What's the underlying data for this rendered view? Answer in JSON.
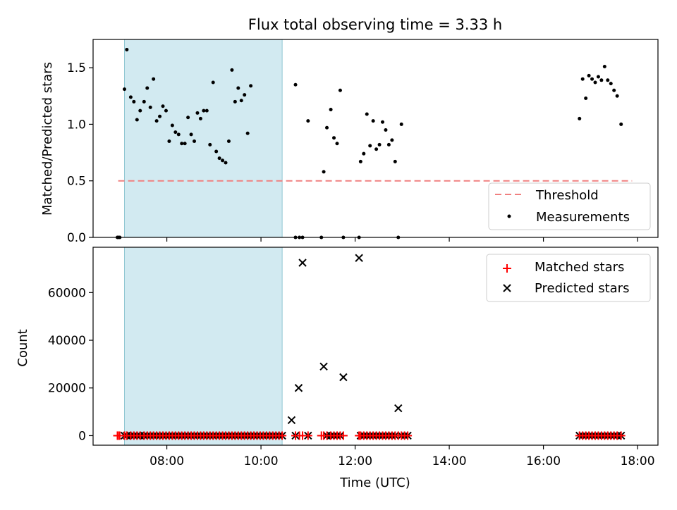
{
  "title": "Flux total observing time = 3.33 h",
  "xlabel": "Time (UTC)",
  "colors": {
    "observing_band": "#add8e6",
    "threshold": "#f08080",
    "measurements": "#000000",
    "matched": "#ff0000",
    "predicted": "#000000"
  },
  "chart_data": [
    {
      "type": "scatter",
      "ylabel": "Matched/Predicted stars",
      "xlim": [
        "06:26",
        "18:26"
      ],
      "ylim": [
        0,
        1.75
      ],
      "yticks": [
        0.0,
        0.5,
        1.0,
        1.5
      ],
      "ytick_labels": [
        "0.0",
        "0.5",
        "1.0",
        "1.5"
      ],
      "shaded_band": {
        "x_start": "07:06",
        "x_end": "10:27"
      },
      "threshold": {
        "name": "Threshold",
        "y": 0.5,
        "x_start": "06:58",
        "x_end": "17:53"
      },
      "legend": {
        "position": "lower-right",
        "entries": [
          "Threshold",
          "Measurements"
        ]
      },
      "series": [
        {
          "name": "Measurements",
          "points": [
            [
              "06:57",
              0
            ],
            [
              "06:58",
              0
            ],
            [
              "07:00",
              0
            ],
            [
              "07:06",
              1.31
            ],
            [
              "07:09",
              1.66
            ],
            [
              "07:14",
              1.24
            ],
            [
              "07:18",
              1.2
            ],
            [
              "07:22",
              1.04
            ],
            [
              "07:26",
              1.12
            ],
            [
              "07:31",
              1.2
            ],
            [
              "07:35",
              1.32
            ],
            [
              "07:39",
              1.15
            ],
            [
              "07:43",
              1.4
            ],
            [
              "07:47",
              1.03
            ],
            [
              "07:51",
              1.07
            ],
            [
              "07:55",
              1.16
            ],
            [
              "07:59",
              1.12
            ],
            [
              "08:03",
              0.85
            ],
            [
              "08:07",
              0.99
            ],
            [
              "08:11",
              0.93
            ],
            [
              "08:15",
              0.91
            ],
            [
              "08:19",
              0.83
            ],
            [
              "08:23",
              0.83
            ],
            [
              "08:27",
              1.06
            ],
            [
              "08:31",
              0.91
            ],
            [
              "08:35",
              0.85
            ],
            [
              "08:39",
              1.1
            ],
            [
              "08:43",
              1.05
            ],
            [
              "08:47",
              1.12
            ],
            [
              "08:51",
              1.12
            ],
            [
              "08:55",
              0.82
            ],
            [
              "08:59",
              1.37
            ],
            [
              "09:03",
              0.76
            ],
            [
              "09:07",
              0.7
            ],
            [
              "09:11",
              0.68
            ],
            [
              "09:15",
              0.66
            ],
            [
              "09:19",
              0.85
            ],
            [
              "09:23",
              1.48
            ],
            [
              "09:27",
              1.2
            ],
            [
              "09:31",
              1.32
            ],
            [
              "09:35",
              1.21
            ],
            [
              "09:39",
              1.26
            ],
            [
              "09:43",
              0.92
            ],
            [
              "09:47",
              1.34
            ],
            [
              "10:44",
              1.35
            ],
            [
              "10:44",
              0
            ],
            [
              "10:49",
              0
            ],
            [
              "10:53",
              0
            ],
            [
              "11:00",
              1.03
            ],
            [
              "11:17",
              0
            ],
            [
              "11:20",
              0.58
            ],
            [
              "11:24",
              0.97
            ],
            [
              "11:29",
              1.13
            ],
            [
              "11:33",
              0.88
            ],
            [
              "11:37",
              0.83
            ],
            [
              "11:41",
              1.3
            ],
            [
              "11:45",
              0
            ],
            [
              "12:05",
              0
            ],
            [
              "12:07",
              0.67
            ],
            [
              "12:11",
              0.74
            ],
            [
              "12:15",
              1.09
            ],
            [
              "12:19",
              0.81
            ],
            [
              "12:23",
              1.03
            ],
            [
              "12:27",
              0.78
            ],
            [
              "12:31",
              0.82
            ],
            [
              "12:35",
              1.02
            ],
            [
              "12:39",
              0.95
            ],
            [
              "12:43",
              0.82
            ],
            [
              "12:47",
              0.86
            ],
            [
              "12:51",
              0.67
            ],
            [
              "12:55",
              0
            ],
            [
              "12:59",
              1.0
            ],
            [
              "16:46",
              1.05
            ],
            [
              "16:50",
              1.4
            ],
            [
              "16:54",
              1.23
            ],
            [
              "16:58",
              1.43
            ],
            [
              "17:02",
              1.4
            ],
            [
              "17:06",
              1.37
            ],
            [
              "17:10",
              1.42
            ],
            [
              "17:14",
              1.39
            ],
            [
              "17:18",
              1.51
            ],
            [
              "17:22",
              1.39
            ],
            [
              "17:26",
              1.36
            ],
            [
              "17:30",
              1.3
            ],
            [
              "17:34",
              1.25
            ],
            [
              "17:39",
              1.0
            ]
          ]
        }
      ]
    },
    {
      "type": "scatter",
      "ylabel": "Count",
      "xlim": [
        "06:26",
        "18:26"
      ],
      "ylim": [
        -4000,
        79000
      ],
      "yticks": [
        0,
        20000,
        40000,
        60000
      ],
      "ytick_labels": [
        "0",
        "20000",
        "40000",
        "60000"
      ],
      "xticks": [
        "08:00",
        "10:00",
        "12:00",
        "14:00",
        "16:00",
        "18:00"
      ],
      "shaded_band": {
        "x_start": "07:06",
        "x_end": "10:27"
      },
      "legend": {
        "position": "upper-right",
        "entries": [
          "Matched stars",
          "Predicted stars"
        ]
      },
      "series": [
        {
          "name": "Matched stars",
          "points_note_free": true,
          "x": [
            "06:57",
            "06:58",
            "07:00",
            "07:06",
            "07:09",
            "07:14",
            "07:18",
            "07:22",
            "07:26",
            "07:31",
            "07:35",
            "07:39",
            "07:43",
            "07:47",
            "07:51",
            "07:55",
            "07:59",
            "08:03",
            "08:07",
            "08:11",
            "08:15",
            "08:19",
            "08:23",
            "08:27",
            "08:31",
            "08:35",
            "08:39",
            "08:43",
            "08:47",
            "08:51",
            "08:55",
            "08:59",
            "09:03",
            "09:07",
            "09:11",
            "09:15",
            "09:19",
            "09:23",
            "09:27",
            "09:31",
            "09:35",
            "09:39",
            "09:43",
            "09:47",
            "09:51",
            "09:55",
            "09:59",
            "10:03",
            "10:07",
            "10:11",
            "10:15",
            "10:19",
            "10:23",
            "10:27",
            "10:44",
            "10:49",
            "10:53",
            "11:00",
            "11:17",
            "11:20",
            "11:24",
            "11:29",
            "11:33",
            "11:37",
            "11:41",
            "11:45",
            "12:05",
            "12:07",
            "12:11",
            "12:15",
            "12:19",
            "12:23",
            "12:27",
            "12:31",
            "12:35",
            "12:39",
            "12:43",
            "12:47",
            "12:51",
            "12:55",
            "12:59",
            "13:03",
            "13:07",
            "16:46",
            "16:50",
            "16:54",
            "16:58",
            "17:02",
            "17:06",
            "17:10",
            "17:14",
            "17:18",
            "17:22",
            "17:26",
            "17:30",
            "17:34",
            "17:39"
          ],
          "y": 0
        },
        {
          "name": "Predicted stars",
          "points": [
            [
              "07:06",
              0
            ],
            [
              "07:09",
              0
            ],
            [
              "07:14",
              0
            ],
            [
              "07:18",
              0
            ],
            [
              "07:22",
              0
            ],
            [
              "07:26",
              0
            ],
            [
              "07:31",
              0
            ],
            [
              "07:35",
              0
            ],
            [
              "07:39",
              0
            ],
            [
              "07:43",
              0
            ],
            [
              "07:47",
              0
            ],
            [
              "07:51",
              0
            ],
            [
              "07:55",
              0
            ],
            [
              "07:59",
              0
            ],
            [
              "08:03",
              0
            ],
            [
              "08:07",
              0
            ],
            [
              "08:11",
              0
            ],
            [
              "08:15",
              0
            ],
            [
              "08:19",
              0
            ],
            [
              "08:23",
              0
            ],
            [
              "08:27",
              0
            ],
            [
              "08:31",
              0
            ],
            [
              "08:35",
              0
            ],
            [
              "08:39",
              0
            ],
            [
              "08:43",
              0
            ],
            [
              "08:47",
              0
            ],
            [
              "08:51",
              0
            ],
            [
              "08:55",
              0
            ],
            [
              "08:59",
              0
            ],
            [
              "09:03",
              0
            ],
            [
              "09:07",
              0
            ],
            [
              "09:11",
              0
            ],
            [
              "09:15",
              0
            ],
            [
              "09:19",
              0
            ],
            [
              "09:23",
              0
            ],
            [
              "09:27",
              0
            ],
            [
              "09:31",
              0
            ],
            [
              "09:35",
              0
            ],
            [
              "09:39",
              0
            ],
            [
              "09:43",
              0
            ],
            [
              "09:47",
              0
            ],
            [
              "09:51",
              0
            ],
            [
              "09:55",
              0
            ],
            [
              "09:59",
              0
            ],
            [
              "10:03",
              0
            ],
            [
              "10:07",
              0
            ],
            [
              "10:11",
              0
            ],
            [
              "10:15",
              0
            ],
            [
              "10:19",
              0
            ],
            [
              "10:23",
              0
            ],
            [
              "10:27",
              0
            ],
            [
              "10:39",
              6500
            ],
            [
              "10:44",
              0
            ],
            [
              "10:48",
              20000
            ],
            [
              "10:53",
              72500
            ],
            [
              "11:00",
              0
            ],
            [
              "11:20",
              29000
            ],
            [
              "11:24",
              0
            ],
            [
              "11:29",
              0
            ],
            [
              "11:33",
              0
            ],
            [
              "11:37",
              0
            ],
            [
              "11:41",
              0
            ],
            [
              "11:45",
              24500
            ],
            [
              "12:05",
              74500
            ],
            [
              "12:07",
              0
            ],
            [
              "12:11",
              0
            ],
            [
              "12:15",
              0
            ],
            [
              "12:19",
              0
            ],
            [
              "12:23",
              0
            ],
            [
              "12:27",
              0
            ],
            [
              "12:31",
              0
            ],
            [
              "12:35",
              0
            ],
            [
              "12:39",
              0
            ],
            [
              "12:43",
              0
            ],
            [
              "12:47",
              0
            ],
            [
              "12:51",
              0
            ],
            [
              "12:55",
              11500
            ],
            [
              "12:59",
              0
            ],
            [
              "13:03",
              0
            ],
            [
              "13:07",
              0
            ],
            [
              "16:46",
              0
            ],
            [
              "16:50",
              0
            ],
            [
              "16:54",
              0
            ],
            [
              "16:58",
              0
            ],
            [
              "17:02",
              0
            ],
            [
              "17:06",
              0
            ],
            [
              "17:10",
              0
            ],
            [
              "17:14",
              0
            ],
            [
              "17:18",
              0
            ],
            [
              "17:22",
              0
            ],
            [
              "17:26",
              0
            ],
            [
              "17:30",
              0
            ],
            [
              "17:34",
              0
            ],
            [
              "17:39",
              0
            ]
          ]
        }
      ]
    }
  ]
}
